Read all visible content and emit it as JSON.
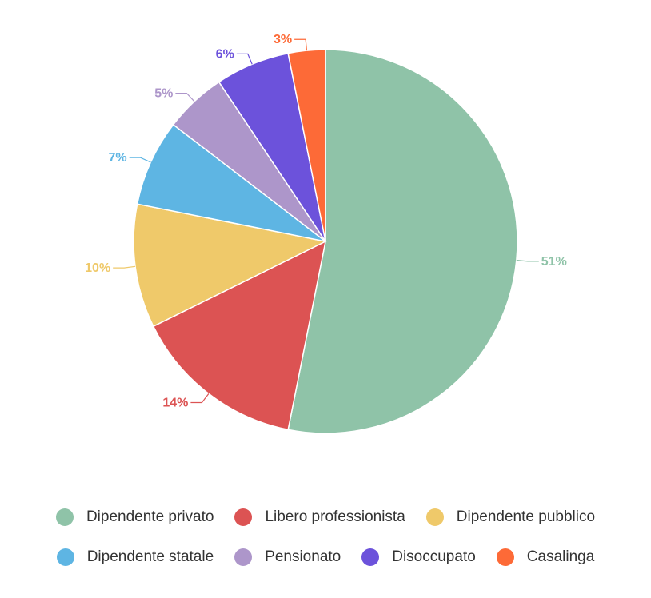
{
  "chart_data": {
    "type": "pie",
    "categories": [
      "Dipendente privato",
      "Libero professionista",
      "Dipendente pubblico",
      "Dipendente statale",
      "Pensionato",
      "Disoccupato",
      "Casalinga"
    ],
    "values": [
      51,
      14,
      10,
      7,
      5,
      6,
      3
    ],
    "data_labels": [
      "51%",
      "14%",
      "10%",
      "7%",
      "5%",
      "6%",
      "3%"
    ],
    "colors": [
      "#8fc3a8",
      "#dc5353",
      "#efc96a",
      "#5eb5e3",
      "#ad96ca",
      "#6c52db",
      "#fd6a37"
    ],
    "title": "",
    "legend_position": "bottom"
  }
}
